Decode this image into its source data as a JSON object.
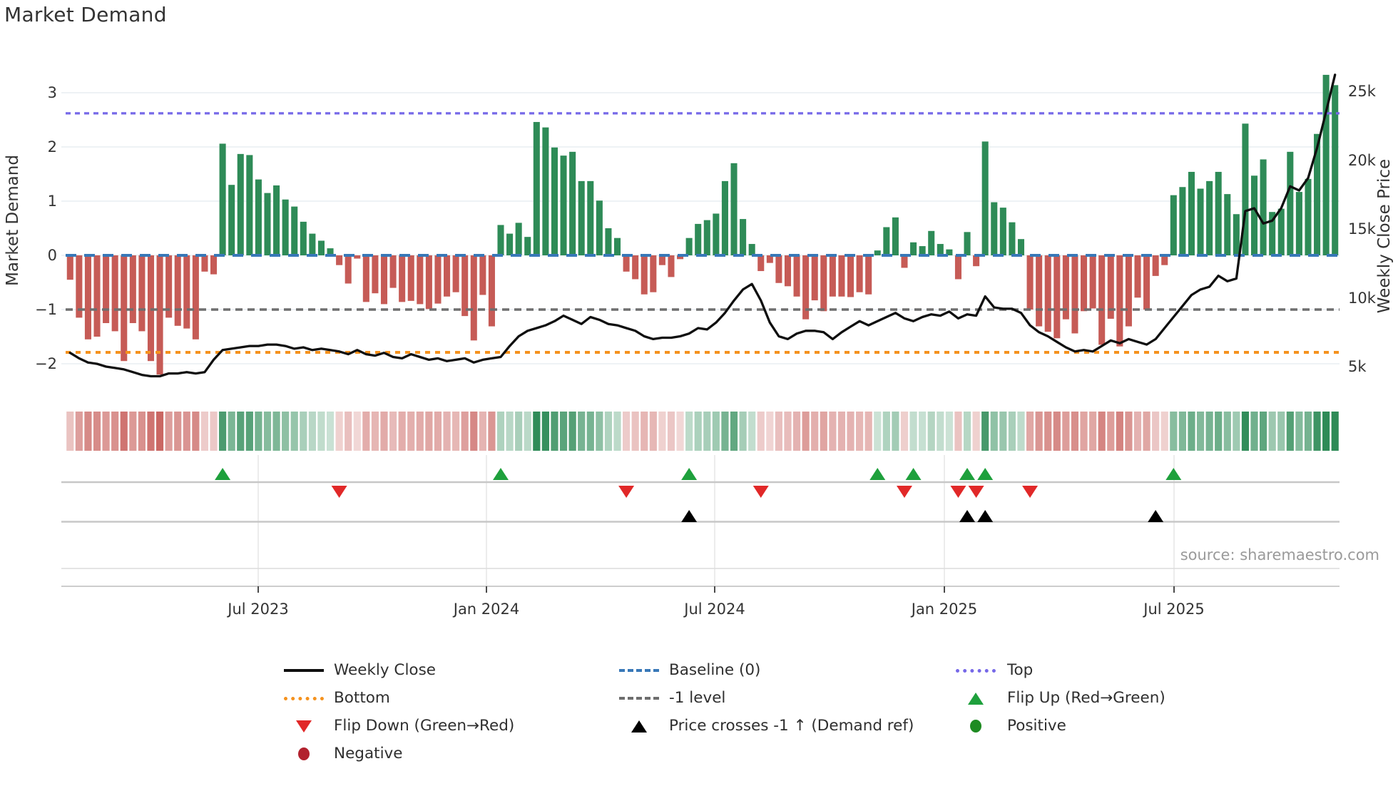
{
  "chart_data": {
    "type": "bar+line",
    "title": "Market Demand",
    "source": "source: sharemaestro.com",
    "left_axis": {
      "label": "Market Demand",
      "tick_labels": [
        "3",
        "2",
        "1",
        "0",
        "−1",
        "−2"
      ],
      "tick_values": [
        3,
        2,
        1,
        0,
        -1,
        -2
      ]
    },
    "right_axis": {
      "label": "Weekly Close Price",
      "tick_labels": [
        "25k",
        "20k",
        "15k",
        "10k",
        "5k"
      ],
      "tick_values_k": [
        25,
        20,
        15,
        10,
        5
      ]
    },
    "x_ticks": [
      "Jul 2023",
      "Jan 2024",
      "Jul 2024",
      "Jan 2025",
      "Jul 2025"
    ],
    "reference_lines": {
      "top": 2.62,
      "baseline": 0,
      "minus_one": -1,
      "bottom": -1.79
    },
    "series": {
      "demand": [
        -0.45,
        -1.15,
        -1.55,
        -1.5,
        -1.25,
        -1.4,
        -1.95,
        -1.25,
        -1.4,
        -1.95,
        -2.2,
        -1.15,
        -1.3,
        -1.35,
        -1.55,
        -0.3,
        -0.35,
        2.06,
        1.3,
        1.87,
        1.85,
        1.4,
        1.15,
        1.29,
        1.03,
        0.9,
        0.62,
        0.4,
        0.27,
        0.13,
        -0.18,
        -0.52,
        -0.06,
        -0.86,
        -0.7,
        -0.9,
        -0.6,
        -0.86,
        -0.84,
        -0.9,
        -0.99,
        -0.89,
        -0.76,
        -0.68,
        -1.12,
        -1.57,
        -0.73,
        -1.31,
        0.56,
        0.4,
        0.6,
        0.34,
        2.46,
        2.36,
        1.99,
        1.84,
        1.91,
        1.37,
        1.37,
        1.01,
        0.5,
        0.32,
        -0.3,
        -0.44,
        -0.72,
        -0.68,
        -0.18,
        -0.4,
        -0.07,
        0.32,
        0.58,
        0.65,
        0.77,
        1.37,
        1.7,
        0.67,
        0.21,
        -0.29,
        -0.14,
        -0.51,
        -0.57,
        -0.76,
        -1.18,
        -0.83,
        -1.03,
        -0.76,
        -0.76,
        -0.77,
        -0.68,
        -0.72,
        0.09,
        0.52,
        0.7,
        -0.23,
        0.24,
        0.17,
        0.45,
        0.21,
        0.11,
        -0.44,
        0.43,
        -0.2,
        2.1,
        0.98,
        0.88,
        0.61,
        0.3,
        -1.0,
        -1.31,
        -1.41,
        -1.53,
        -1.18,
        -1.44,
        -1.03,
        -0.98,
        -1.65,
        -1.17,
        -1.68,
        -1.31,
        -0.78,
        -1.0,
        -0.38,
        -0.18,
        1.11,
        1.26,
        1.54,
        1.23,
        1.37,
        1.54,
        1.13,
        0.76,
        2.43,
        1.47,
        1.77,
        0.8,
        0.86,
        1.91,
        1.17,
        1.41,
        2.24,
        3.33,
        3.14
      ],
      "weekly_close_k": [
        6.0,
        5.6,
        5.3,
        5.2,
        5.0,
        4.9,
        4.8,
        4.6,
        4.4,
        4.3,
        4.3,
        4.5,
        4.5,
        4.6,
        4.5,
        4.6,
        5.5,
        6.2,
        6.3,
        6.4,
        6.5,
        6.5,
        6.6,
        6.6,
        6.5,
        6.3,
        6.4,
        6.2,
        6.3,
        6.2,
        6.1,
        5.9,
        6.2,
        5.9,
        5.8,
        6.0,
        5.7,
        5.6,
        5.9,
        5.7,
        5.5,
        5.6,
        5.4,
        5.5,
        5.6,
        5.3,
        5.5,
        5.6,
        5.7,
        6.5,
        7.2,
        7.6,
        7.8,
        8.0,
        8.3,
        8.7,
        8.4,
        8.1,
        8.6,
        8.4,
        8.1,
        8.0,
        7.8,
        7.6,
        7.2,
        7.0,
        7.1,
        7.1,
        7.2,
        7.4,
        7.8,
        7.7,
        8.2,
        8.9,
        9.8,
        10.6,
        11.0,
        9.8,
        8.2,
        7.2,
        7.0,
        7.4,
        7.6,
        7.6,
        7.5,
        7.0,
        7.5,
        7.9,
        8.3,
        8.0,
        8.3,
        8.6,
        8.9,
        8.5,
        8.3,
        8.6,
        8.8,
        8.7,
        9.0,
        8.5,
        8.8,
        8.7,
        10.1,
        9.3,
        9.2,
        9.2,
        8.9,
        8.0,
        7.5,
        7.2,
        6.8,
        6.4,
        6.1,
        6.2,
        6.1,
        6.5,
        6.9,
        6.7,
        7.0,
        6.8,
        6.6,
        7.0,
        7.8,
        8.6,
        9.4,
        10.2,
        10.6,
        10.8,
        11.6,
        11.2,
        11.4,
        16.3,
        16.5,
        15.4,
        15.6,
        16.5,
        18.1,
        17.8,
        18.7,
        20.9,
        23.5,
        26.2
      ]
    },
    "price_cross_weeks": [
      69,
      100,
      102,
      121
    ]
  },
  "colors": {
    "bar_green": "#2e8b57",
    "bar_red": "#c65b56",
    "baseline": "#3878b8",
    "top": "#7668e8",
    "minus_one": "#6e6e6e",
    "bottom": "#f5921e",
    "price_line": "#0f0f0f",
    "flip_up": "#1ea03c",
    "flip_down": "#e12828",
    "positive": "#1e8b22",
    "negative": "#b2222e",
    "cross": "#000000",
    "grid": "#e9edf2",
    "panel_line": "#c7c7c7"
  },
  "legend": {
    "columns": [
      {
        "items": [
          {
            "swatch": "line-black",
            "label": "Weekly Close"
          },
          {
            "swatch": "dotted-orange",
            "label": "Bottom"
          },
          {
            "swatch": "triangle-down-red",
            "label": "Flip Down (Green→Red)"
          },
          {
            "swatch": "circle-darkred",
            "label": "Negative"
          }
        ]
      },
      {
        "items": [
          {
            "swatch": "dashed-blue",
            "label": "Baseline (0)"
          },
          {
            "swatch": "dashed-gray",
            "label": "-1 level"
          },
          {
            "swatch": "triangle-up-black",
            "label": "Price crosses -1 ↑ (Demand ref)"
          }
        ]
      },
      {
        "items": [
          {
            "swatch": "dotted-purple",
            "label": "Top"
          },
          {
            "swatch": "triangle-up-green",
            "label": "Flip Up (Red→Green)"
          },
          {
            "swatch": "circle-green",
            "label": "Positive"
          }
        ]
      }
    ]
  }
}
